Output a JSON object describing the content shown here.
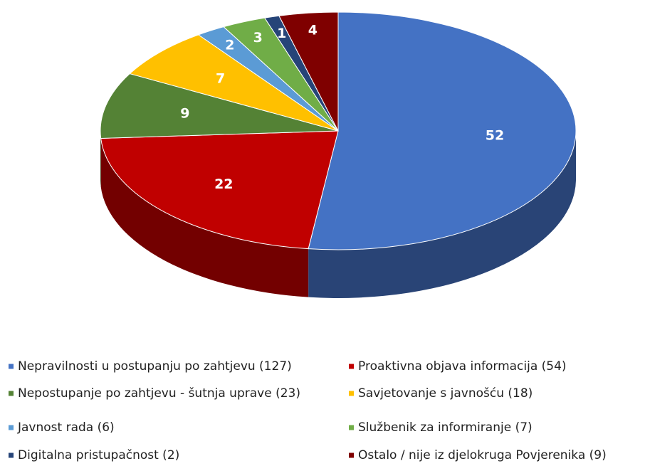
{
  "chart_data": {
    "type": "pie3d",
    "series": [
      {
        "name": "Nepravilnosti u postupanju po zahtjevu (127)",
        "color": "#4472c4",
        "values": [
          52
        ]
      },
      {
        "name": "Proaktivna objava informacija (54)",
        "color": "#c00000",
        "values": [
          22
        ]
      },
      {
        "name": "Nepostupanje po zahtjevu - šutnja uprave (23)",
        "color": "#548235",
        "values": [
          9
        ]
      },
      {
        "name": "Savjetovanje s javnošću (18)",
        "color": "#ffc000",
        "values": [
          7
        ]
      },
      {
        "name": "Javnost rada (6)",
        "color": "#5b9bd5",
        "values": [
          2
        ]
      },
      {
        "name": "Službenik za informiranje (7)",
        "color": "#70ad47",
        "values": [
          3
        ]
      },
      {
        "name": "Digitalna pristupačnost (2)",
        "color": "#264478",
        "values": [
          1
        ]
      },
      {
        "name": "Ostalo / nije iz djelokruga Povjerenika (9)",
        "color": "#7f0000",
        "values": [
          4
        ]
      }
    ]
  }
}
